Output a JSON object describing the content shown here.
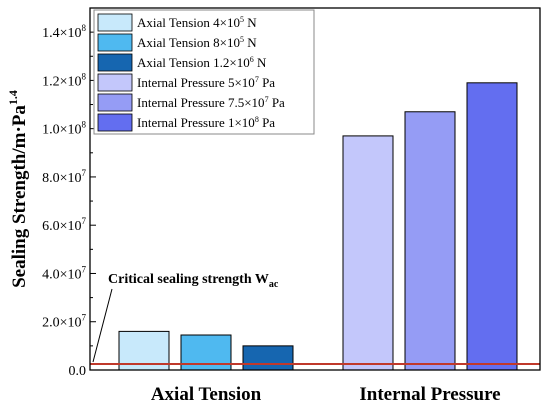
{
  "chart_data": {
    "type": "bar",
    "ylabel": "Sealing Strength/m·Pa",
    "ylabel_sup": "1.4",
    "ylim": [
      0,
      150000000
    ],
    "grid": false,
    "legend_position": "top-left",
    "y_ticks": [
      {
        "value": 0,
        "mant": "0.0",
        "exp": ""
      },
      {
        "value": 20000000,
        "mant": "2.0×10",
        "exp": "7"
      },
      {
        "value": 40000000,
        "mant": "4.0×10",
        "exp": "7"
      },
      {
        "value": 60000000,
        "mant": "6.0×10",
        "exp": "7"
      },
      {
        "value": 80000000,
        "mant": "8.0×10",
        "exp": "7"
      },
      {
        "value": 100000000,
        "mant": "1.0×10",
        "exp": "8"
      },
      {
        "value": 120000000,
        "mant": "1.2×10",
        "exp": "8"
      },
      {
        "value": 140000000,
        "mant": "1.4×10",
        "exp": "8"
      }
    ],
    "groups": [
      {
        "label": "Axial Tension",
        "bars": [
          {
            "legend": "Axial Tension",
            "load_mant": "4×10",
            "load_exp": "5",
            "unit": " N",
            "value": 16000000,
            "color": "#c8e9fb"
          },
          {
            "legend": "Axial Tension",
            "load_mant": "8×10",
            "load_exp": "5",
            "unit": " N",
            "value": 14500000,
            "color": "#4fb9f0"
          },
          {
            "legend": "Axial Tension",
            "load_mant": "1.2×10",
            "load_exp": "6",
            "unit": " N",
            "value": 10000000,
            "color": "#1666b0"
          }
        ]
      },
      {
        "label": "Internal Pressure",
        "bars": [
          {
            "legend": "Internal Pressure",
            "load_mant": "5×10",
            "load_exp": "7",
            "unit": " Pa",
            "value": 97000000,
            "color": "#c3c7fb"
          },
          {
            "legend": "Internal Pressure",
            "load_mant": "7.5×10",
            "load_exp": "7",
            "unit": " Pa",
            "value": 107000000,
            "color": "#959cf5"
          },
          {
            "legend": "Internal Pressure",
            "load_mant": "1×10",
            "load_exp": "8",
            "unit": " Pa",
            "value": 119000000,
            "color": "#636ef0"
          }
        ]
      }
    ],
    "threshold": {
      "value": 2500000,
      "label": "Critical sealing strength W",
      "label_sub": "ac",
      "color": "#c0392b"
    }
  }
}
